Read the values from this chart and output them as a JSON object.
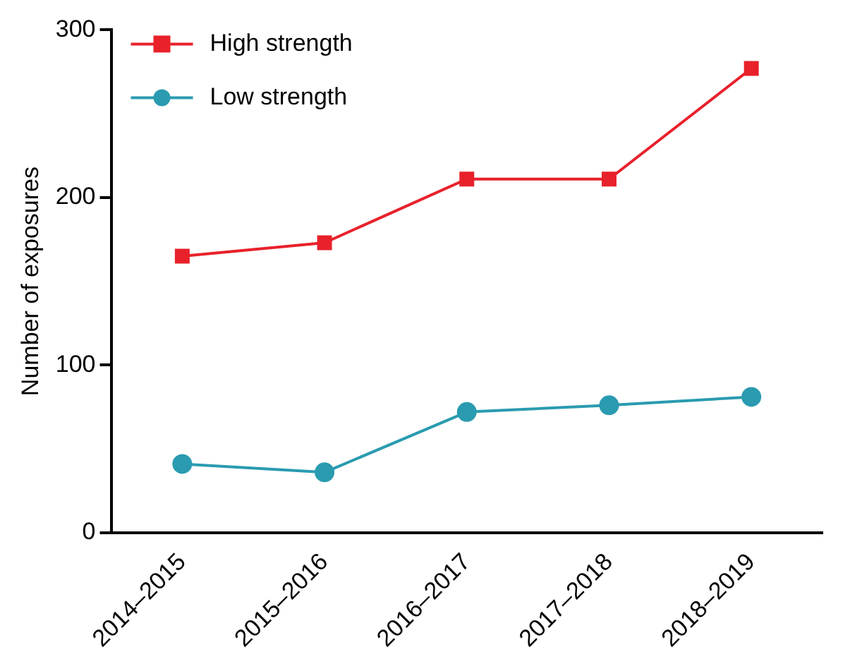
{
  "chart_data": {
    "type": "line",
    "ylabel": "Number of exposures",
    "categories": [
      "2014–2015",
      "2015–2016",
      "2016–2017",
      "2017–2018",
      "2018–2019"
    ],
    "series": [
      {
        "name": "High strength",
        "color": "#e8212b",
        "marker": "square",
        "values": [
          165,
          173,
          211,
          211,
          277
        ]
      },
      {
        "name": "Low strength",
        "color": "#2a9bb0",
        "marker": "circle",
        "values": [
          41,
          36,
          72,
          76,
          81
        ]
      }
    ],
    "ylim": [
      0,
      300
    ],
    "yticks": [
      0,
      100,
      200,
      300
    ],
    "grid": false,
    "legend": "top left"
  }
}
